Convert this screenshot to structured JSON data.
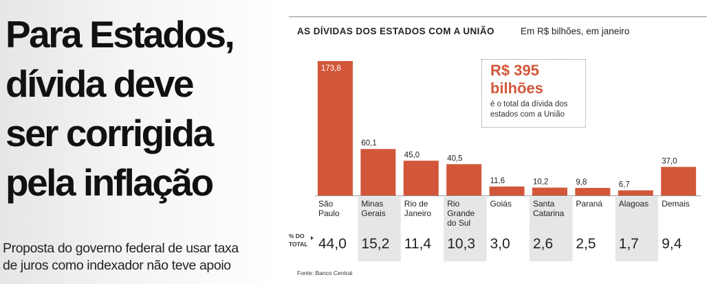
{
  "headline": [
    "Para Estados,",
    "dívida deve",
    "ser corrigida",
    "pela inflação"
  ],
  "subheadline": [
    "Proposta do governo federal de usar taxa",
    "de juros como indexador não teve apoio"
  ],
  "colors": {
    "bar": "#d2573a",
    "accent_text": "#d2573a",
    "shade": "#e6e6e6"
  },
  "callout": {
    "amount": "R$ 395",
    "unit": "bilhões",
    "description": "é o total da dívida dos estados com a União"
  },
  "pct_label": [
    "% DO",
    "TOTAL"
  ],
  "source": "Fonte: Banco Central",
  "chart_data": {
    "type": "bar",
    "title": "AS DÍVIDAS DOS ESTADOS COM A UNIÃO",
    "subtitle": "Em R$ bilhões, em janeiro",
    "categories": [
      [
        "São",
        "Paulo"
      ],
      [
        "Minas",
        "Gerais"
      ],
      [
        "Rio de",
        "Janeiro"
      ],
      [
        "Rio",
        "Grande",
        "do Sul"
      ],
      [
        "Goiás"
      ],
      [
        "Santa",
        "Catarina"
      ],
      [
        "Paraná"
      ],
      [
        "Alagoas"
      ],
      [
        "Demais"
      ]
    ],
    "values": [
      173.8,
      60.1,
      45.0,
      40.5,
      11.6,
      10.2,
      9.8,
      6.7,
      37.0
    ],
    "value_labels": [
      "173,8",
      "60,1",
      "45,0",
      "40,5",
      "11,6",
      "10,2",
      "9,8",
      "6,7",
      "37,0"
    ],
    "percent_of_total": [
      44.0,
      15.2,
      11.4,
      10.3,
      3.0,
      2.6,
      2.5,
      1.7,
      9.4
    ],
    "percent_labels": [
      "44,0",
      "15,2",
      "11,4",
      "10,3",
      "3,0",
      "2,6",
      "2,5",
      "1,7",
      "9,4"
    ],
    "shaded_columns": [
      1,
      3,
      5,
      7
    ],
    "ylim": [
      0,
      173.8
    ],
    "grid": false,
    "legend": "none"
  }
}
